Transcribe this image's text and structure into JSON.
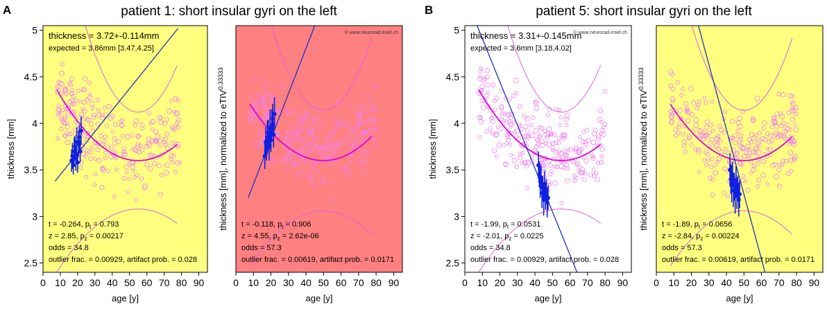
{
  "panels": [
    {
      "label": "A",
      "title": "patient 1: short insular gyri on the left",
      "charts": [
        {
          "type": "scatter",
          "background": "#ffff80",
          "ylabel": "thickness [mm]",
          "xlabel": "age [y]",
          "xlim": [
            0,
            95
          ],
          "ylim": [
            2.4,
            5.05
          ],
          "xticks": [
            0,
            10,
            20,
            30,
            40,
            50,
            60,
            70,
            80,
            90
          ],
          "yticks": [
            2.5,
            3,
            3.5,
            4,
            4.5,
            5
          ],
          "thickness_text": "thickness = 3.72+-0.114mm",
          "expected_text": "expected = 3.86mm [3.47,4.25]",
          "copyright": "",
          "stats": {
            "t": "t = -0.264, ",
            "p_t_label": "p",
            "p_t_sub": "t",
            "p_t_val": " = 0.793",
            "z": "z = 2.85, ",
            "p_z_label": "p",
            "p_z_sub": "z",
            "p_z_val": " = 0.00217",
            "odds": "odds = 34.8",
            "outlier": "outlier frac. = 0.00929, artifact prob. = 0.028"
          },
          "norm_curve": {
            "x": [
              8,
              77.5
            ],
            "vertex_x": 55,
            "vertex_y": 3.6,
            "spread_low": 0.3,
            "spread_high": 0.65
          },
          "patient_points": {
            "x": [
              16.5,
              17,
              17.5,
              18,
              18.5,
              19,
              19.5,
              20,
              20.5,
              21,
              21.5,
              22
            ],
            "y": [
              3.6,
              3.65,
              3.55,
              3.7,
              3.75,
              3.62,
              3.8,
              3.58,
              3.78,
              3.85,
              3.7,
              3.92
            ],
            "err": [
              0.12,
              0.14,
              0.1,
              0.15,
              0.12,
              0.13,
              0.16,
              0.11,
              0.14,
              0.13,
              0.12,
              0.15
            ]
          },
          "fit_line": {
            "x": [
              7,
              78
            ],
            "y": [
              3.38,
              5.02
            ]
          }
        },
        {
          "type": "scatter",
          "background": "#ff8080",
          "ylabel": "thickness [mm], normalized to eTIV",
          "ylabel_sup": "0.33333",
          "xlabel": "age [y]",
          "xlim": [
            0,
            95
          ],
          "ylim": [
            2.4,
            5.05
          ],
          "xticks": [
            0,
            10,
            20,
            30,
            40,
            50,
            60,
            70,
            80,
            90
          ],
          "yticks": [],
          "thickness_text": "",
          "expected_text": "",
          "copyright": "© www.neurorad.insel.ch",
          "stats": {
            "t": "t = -0.118, ",
            "p_t_label": "p",
            "p_t_sub": "t",
            "p_t_val": " = 0.906",
            "z": "z = 4.55, ",
            "p_z_label": "p",
            "p_z_sub": "z",
            "p_z_val": " = 2.62e-06",
            "odds": "odds = 57.3",
            "outlier": "outlier frac. = 0.00619, artifact prob. = 0.0171"
          },
          "norm_curve": {
            "x": [
              8,
              77.5
            ],
            "vertex_x": 50,
            "vertex_y": 3.6,
            "spread_low": 0.32,
            "spread_high": 0.68
          },
          "patient_points": {
            "x": [
              16.5,
              17,
              17.5,
              18,
              18.5,
              19,
              19.5,
              20,
              20.5,
              21,
              21.5,
              22
            ],
            "y": [
              3.65,
              3.8,
              3.72,
              3.85,
              3.9,
              3.75,
              3.95,
              3.82,
              3.98,
              4.05,
              3.88,
              4.1
            ],
            "err": [
              0.14,
              0.16,
              0.12,
              0.18,
              0.14,
              0.15,
              0.2,
              0.13,
              0.17,
              0.16,
              0.14,
              0.18
            ]
          },
          "fit_line": {
            "x": [
              7,
              45
            ],
            "y": [
              3.2,
              5.05
            ]
          }
        }
      ]
    },
    {
      "label": "B",
      "title": "patient 5: short insular gyri on the left",
      "charts": [
        {
          "type": "scatter",
          "background": "#ffffff",
          "ylabel": "thickness [mm]",
          "xlabel": "age [y]",
          "xlim": [
            0,
            95
          ],
          "ylim": [
            2.4,
            5.05
          ],
          "xticks": [
            0,
            10,
            20,
            30,
            40,
            50,
            60,
            70,
            80,
            90
          ],
          "yticks": [
            2.5,
            3,
            3.5,
            4,
            4.5,
            5
          ],
          "thickness_text": "thickness = 3.31+-0.145mm",
          "expected_text": "expected = 3.6mm [3.18,4.02]",
          "copyright": "© www.neurorad.insel.ch",
          "stats": {
            "t": "t = -1.99, ",
            "p_t_label": "p",
            "p_t_sub": "t",
            "p_t_val": " = 0.0531",
            "z": "z = -2.01, ",
            "p_z_label": "p",
            "p_z_sub": "z",
            "p_z_val": " = 0.0225",
            "odds": "odds = 34.8",
            "outlier": "outlier frac. = 0.00929, artifact prob. = 0.028"
          },
          "norm_curve": {
            "x": [
              8,
              77.5
            ],
            "vertex_x": 55,
            "vertex_y": 3.6,
            "spread_low": 0.3,
            "spread_high": 0.65
          },
          "patient_points": {
            "x": [
              42,
              42.5,
              43,
              43.5,
              44,
              44.5,
              45,
              45.5,
              46,
              46.5,
              47,
              47.5
            ],
            "y": [
              3.55,
              3.45,
              3.38,
              3.42,
              3.25,
              3.3,
              3.18,
              3.35,
              3.22,
              3.28,
              3.15,
              3.2
            ],
            "err": [
              0.15,
              0.14,
              0.18,
              0.12,
              0.16,
              0.13,
              0.17,
              0.14,
              0.15,
              0.12,
              0.16,
              0.13
            ]
          },
          "fit_line": {
            "x": [
              7,
              64
            ],
            "y": [
              5.05,
              2.4
            ]
          }
        },
        {
          "type": "scatter",
          "background": "#ffff80",
          "ylabel": "thickness [mm], normalized to eTIV",
          "ylabel_sup": "0.33333",
          "xlabel": "age [y]",
          "xlim": [
            0,
            95
          ],
          "ylim": [
            2.4,
            5.05
          ],
          "xticks": [
            0,
            10,
            20,
            30,
            40,
            50,
            60,
            70,
            80,
            90
          ],
          "yticks": [],
          "thickness_text": "",
          "expected_text": "",
          "copyright": "",
          "stats": {
            "t": "t = -1.89, ",
            "p_t_label": "p",
            "p_t_sub": "t",
            "p_t_val": " = 0.0656",
            "z": "z = -2.84, ",
            "p_z_label": "p",
            "p_z_sub": "z",
            "p_z_val": " = 0.00224",
            "odds": "odds = 57.3",
            "outlier": "outlier frac. = 0.00619, artifact prob. = 0.0171"
          },
          "norm_curve": {
            "x": [
              8,
              77.5
            ],
            "vertex_x": 50,
            "vertex_y": 3.6,
            "spread_low": 0.32,
            "spread_high": 0.68
          },
          "patient_points": {
            "x": [
              42,
              42.5,
              43,
              43.5,
              44,
              44.5,
              45,
              45.5,
              46,
              46.5,
              47,
              47.5
            ],
            "y": [
              3.5,
              3.4,
              3.35,
              3.45,
              3.28,
              3.32,
              3.22,
              3.38,
              3.25,
              3.3,
              3.18,
              3.24
            ],
            "err": [
              0.18,
              0.16,
              0.2,
              0.14,
              0.18,
              0.15,
              0.19,
              0.16,
              0.17,
              0.14,
              0.18,
              0.15
            ]
          },
          "fit_line": {
            "x": [
              24,
              62
            ],
            "y": [
              5.05,
              2.4
            ]
          }
        }
      ]
    }
  ],
  "extra_copyright": "© www.neurorad.insel.ch"
}
